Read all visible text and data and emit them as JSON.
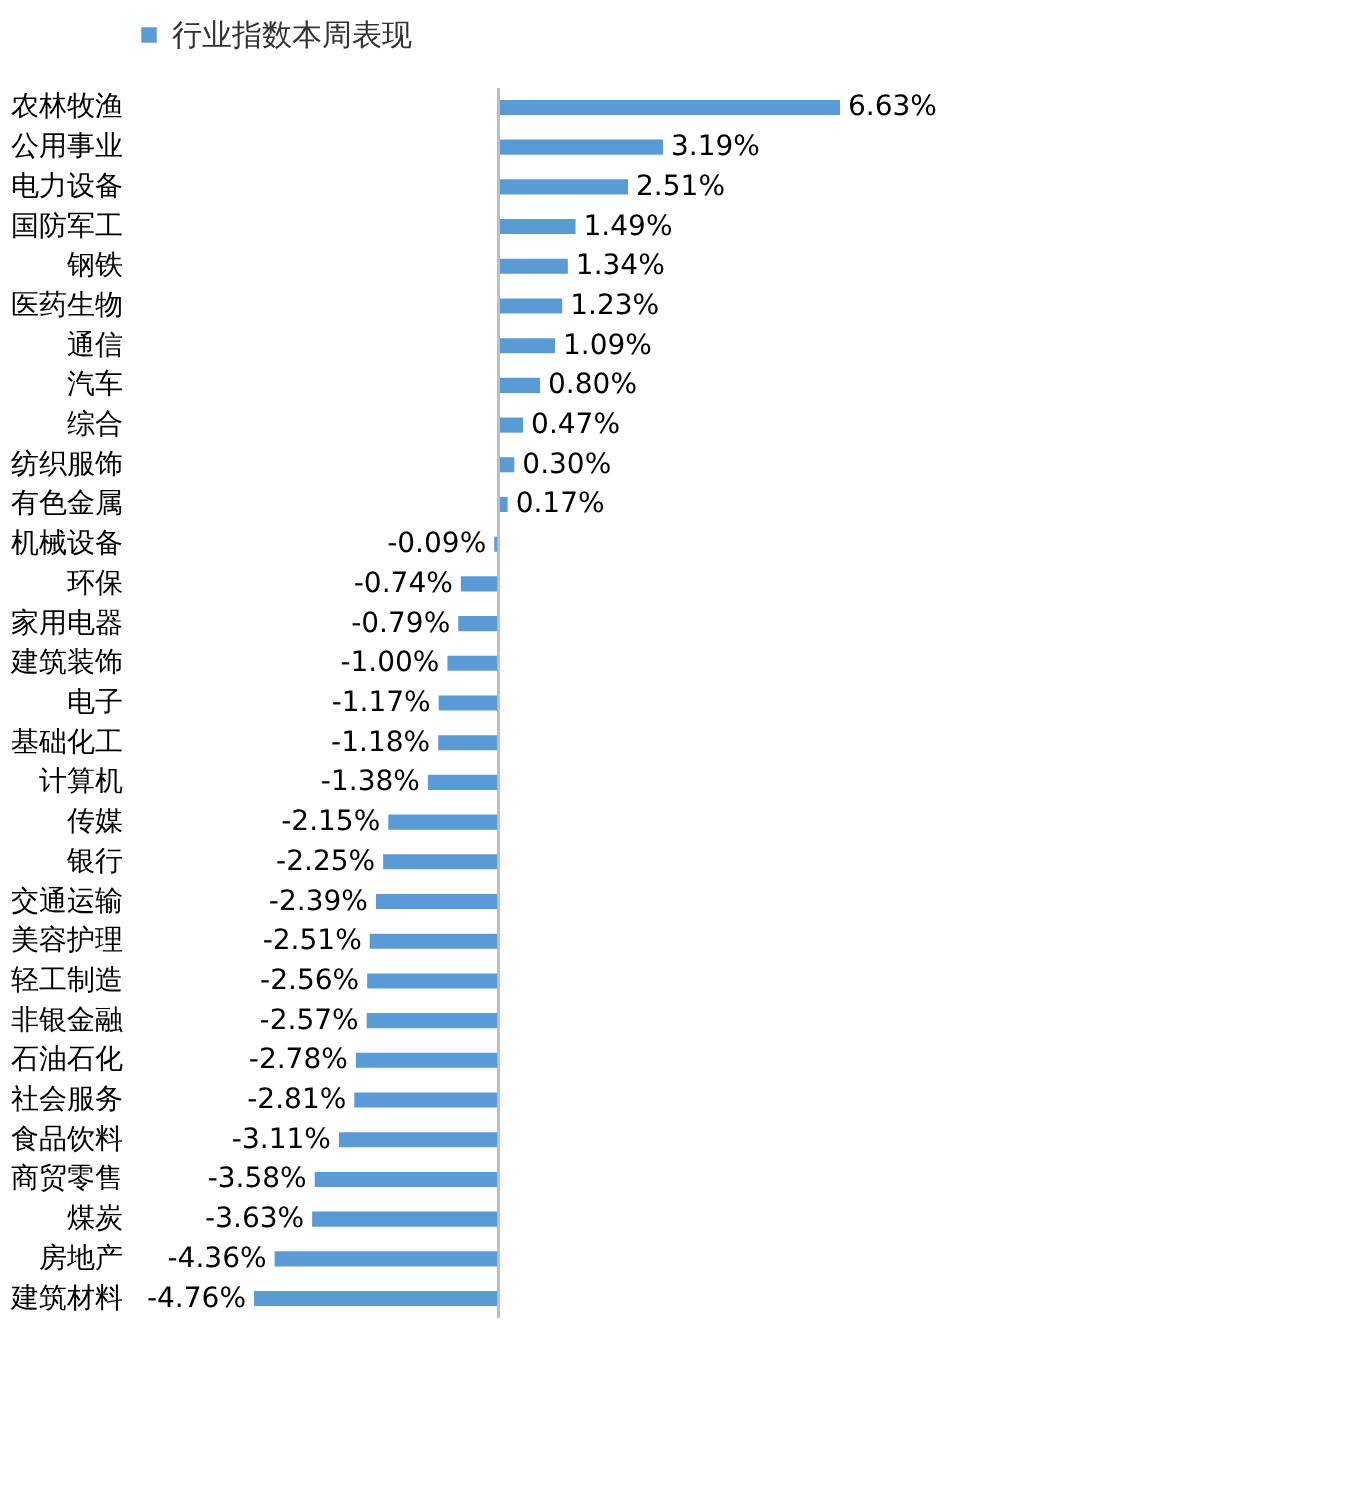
{
  "chart_data": {
    "type": "bar",
    "orientation": "horizontal",
    "legend": "top",
    "categories": [
      "农林牧渔",
      "公用事业",
      "电力设备",
      "国防军工",
      "钢铁",
      "医药生物",
      "通信",
      "汽车",
      "综合",
      "纺织服饰",
      "有色金属",
      "机械设备",
      "环保",
      "家用电器",
      "建筑装饰",
      "电子",
      "基础化工",
      "计算机",
      "传媒",
      "银行",
      "交通运输",
      "美容护理",
      "轻工制造",
      "非银金融",
      "石油石化",
      "社会服务",
      "食品饮料",
      "商贸零售",
      "煤炭",
      "房地产",
      "建筑材料"
    ],
    "series": [
      {
        "name": "行业指数本周表现",
        "color": "#5b9bd5",
        "values": [
          6.63,
          3.19,
          2.51,
          1.49,
          1.34,
          1.23,
          1.09,
          0.8,
          0.47,
          0.3,
          0.17,
          -0.09,
          -0.74,
          -0.79,
          -1.0,
          -1.17,
          -1.18,
          -1.38,
          -2.15,
          -2.25,
          -2.39,
          -2.51,
          -2.56,
          -2.57,
          -2.78,
          -2.81,
          -3.11,
          -3.58,
          -3.63,
          -4.36,
          -4.76
        ],
        "value_labels": [
          "6.63%",
          "3.19%",
          "2.51%",
          "1.49%",
          "1.34%",
          "1.23%",
          "1.09%",
          "0.80%",
          "0.47%",
          "0.30%",
          "0.17%",
          "-0.09%",
          "-0.74%",
          "-0.79%",
          "-1.00%",
          "-1.17%",
          "-1.18%",
          "-1.38%",
          "-2.15%",
          "-2.25%",
          "-2.39%",
          "-2.51%",
          "-2.56%",
          "-2.57%",
          "-2.78%",
          "-2.81%",
          "-3.11%",
          "-3.58%",
          "-3.63%",
          "-4.36%",
          "-4.76%"
        ]
      }
    ]
  }
}
